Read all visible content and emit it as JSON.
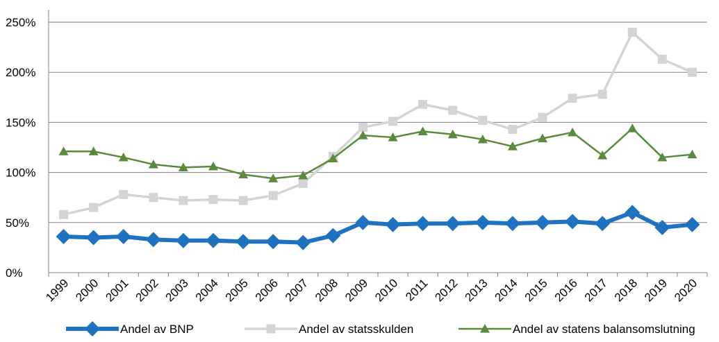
{
  "chart_data": {
    "type": "line",
    "title": "",
    "xlabel": "",
    "ylabel": "",
    "ylim": [
      0,
      250
    ],
    "y_unit": "%",
    "yticks": [
      "0%",
      "50%",
      "100%",
      "150%",
      "200%",
      "250%"
    ],
    "grid": "horizontal",
    "legend_position": "bottom",
    "categories": [
      "1999",
      "2000",
      "2001",
      "2002",
      "2003",
      "2004",
      "2005",
      "2006",
      "2007",
      "2008",
      "2009",
      "2010",
      "2011",
      "2012",
      "2013",
      "2014",
      "2015",
      "2016",
      "2017",
      "2018",
      "2019",
      "2020"
    ],
    "series": [
      {
        "name": "Andel av BNP",
        "color": "#1f72c0",
        "marker": "diamond",
        "values": [
          36,
          35,
          36,
          33,
          32,
          32,
          31,
          31,
          30,
          37,
          50,
          48,
          49,
          49,
          50,
          49,
          50,
          51,
          49,
          60,
          45,
          48
        ]
      },
      {
        "name": "Andel av statsskulden",
        "color": "#d4d4d4",
        "marker": "square",
        "values": [
          58,
          65,
          78,
          75,
          72,
          73,
          72,
          77,
          89,
          116,
          145,
          151,
          168,
          162,
          152,
          143,
          155,
          174,
          178,
          240,
          213,
          200
        ]
      },
      {
        "name": "Andel av statens balansomslutning",
        "color": "#5a8a3c",
        "marker": "triangle",
        "values": [
          121,
          121,
          115,
          108,
          105,
          106,
          98,
          94,
          97,
          114,
          137,
          135,
          141,
          138,
          133,
          126,
          134,
          140,
          117,
          144,
          115,
          118
        ]
      }
    ]
  }
}
